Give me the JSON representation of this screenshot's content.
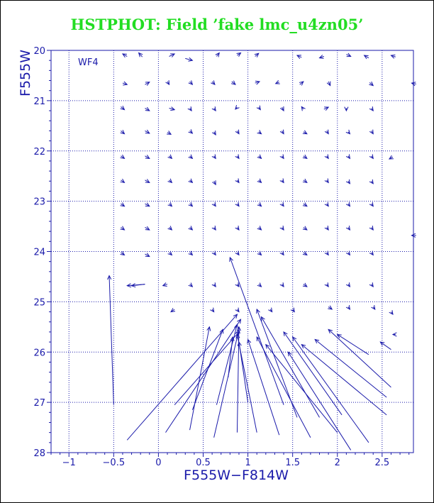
{
  "chart_data": {
    "type": "scatter",
    "title": "HSTPHOT: Field ’fake lmc_u4zn05’",
    "xlabel": "F555W−F814W",
    "ylabel": "F555W",
    "panel_label": "WF4",
    "xlim": [
      -1.2,
      2.85
    ],
    "ylim": [
      28,
      20
    ],
    "x_ticks": [
      -1,
      -0.5,
      0,
      0.5,
      1,
      1.5,
      2,
      2.5
    ],
    "x_tick_labels": [
      "−1",
      "−0.5",
      "0",
      "0.5",
      "1",
      "1.5",
      "2",
      "2.5"
    ],
    "y_ticks": [
      20,
      21,
      22,
      23,
      24,
      25,
      26,
      27,
      28
    ],
    "y_tick_labels": [
      "20",
      "21",
      "22",
      "23",
      "24",
      "25",
      "26",
      "27",
      "28"
    ],
    "grid": true,
    "grid_style": "dotted",
    "colors": {
      "title": "#22dd22",
      "axes": "#1a1aaa",
      "grid": "#1a1aaa",
      "vectors": "#1a1aaa"
    },
    "description_of_series": "Each vector runs from an input (color, magnitude) to the recovered (color, magnitude).",
    "vectors": [
      {
        "x0": -0.35,
        "y0": 20.12,
        "x1": -0.4,
        "y1": 20.07
      },
      {
        "x0": -0.18,
        "y0": 20.13,
        "x1": -0.22,
        "y1": 20.05
      },
      {
        "x0": 0.12,
        "y0": 20.12,
        "x1": 0.18,
        "y1": 20.07
      },
      {
        "x0": 0.3,
        "y0": 20.16,
        "x1": 0.38,
        "y1": 20.2
      },
      {
        "x0": 0.65,
        "y0": 20.12,
        "x1": 0.68,
        "y1": 20.05
      },
      {
        "x0": 0.88,
        "y0": 20.1,
        "x1": 0.92,
        "y1": 20.05
      },
      {
        "x0": 1.08,
        "y0": 20.12,
        "x1": 1.12,
        "y1": 20.06
      },
      {
        "x0": 1.6,
        "y0": 20.14,
        "x1": 1.55,
        "y1": 20.1
      },
      {
        "x0": 1.85,
        "y0": 20.12,
        "x1": 1.8,
        "y1": 20.15
      },
      {
        "x0": 2.1,
        "y0": 20.08,
        "x1": 2.15,
        "y1": 20.12
      },
      {
        "x0": 2.35,
        "y0": 20.15,
        "x1": 2.3,
        "y1": 20.1
      },
      {
        "x0": 2.65,
        "y0": 20.13,
        "x1": 2.6,
        "y1": 20.1
      },
      {
        "x0": -0.4,
        "y0": 20.65,
        "x1": -0.35,
        "y1": 20.68
      },
      {
        "x0": -0.15,
        "y0": 20.68,
        "x1": -0.1,
        "y1": 20.63
      },
      {
        "x0": 0.1,
        "y0": 20.62,
        "x1": 0.12,
        "y1": 20.68
      },
      {
        "x0": 0.35,
        "y0": 20.62,
        "x1": 0.38,
        "y1": 20.68
      },
      {
        "x0": 0.6,
        "y0": 20.62,
        "x1": 0.63,
        "y1": 20.68
      },
      {
        "x0": 0.82,
        "y0": 20.62,
        "x1": 0.86,
        "y1": 20.68
      },
      {
        "x0": 1.08,
        "y0": 20.65,
        "x1": 1.13,
        "y1": 20.62
      },
      {
        "x0": 1.35,
        "y0": 20.63,
        "x1": 1.31,
        "y1": 20.66
      },
      {
        "x0": 1.58,
        "y0": 20.68,
        "x1": 1.62,
        "y1": 20.62
      },
      {
        "x0": 1.9,
        "y0": 20.62,
        "x1": 1.92,
        "y1": 20.7
      },
      {
        "x0": 2.36,
        "y0": 20.64,
        "x1": 2.4,
        "y1": 20.7
      },
      {
        "x0": 2.88,
        "y0": 20.67,
        "x1": 2.83,
        "y1": 20.65
      },
      {
        "x0": -0.42,
        "y0": 21.12,
        "x1": -0.38,
        "y1": 21.18
      },
      {
        "x0": -0.15,
        "y0": 21.15,
        "x1": -0.1,
        "y1": 21.2
      },
      {
        "x0": 0.12,
        "y0": 21.15,
        "x1": 0.18,
        "y1": 21.18
      },
      {
        "x0": 0.35,
        "y0": 21.15,
        "x1": 0.37,
        "y1": 21.2
      },
      {
        "x0": 0.62,
        "y0": 21.15,
        "x1": 0.64,
        "y1": 21.2
      },
      {
        "x0": 0.88,
        "y0": 21.13,
        "x1": 0.86,
        "y1": 21.17
      },
      {
        "x0": 1.12,
        "y0": 21.13,
        "x1": 1.14,
        "y1": 21.18
      },
      {
        "x0": 1.38,
        "y0": 21.13,
        "x1": 1.4,
        "y1": 21.2
      },
      {
        "x0": 1.62,
        "y0": 21.17,
        "x1": 1.6,
        "y1": 21.12
      },
      {
        "x0": 1.85,
        "y0": 21.17,
        "x1": 1.9,
        "y1": 21.13
      },
      {
        "x0": 2.1,
        "y0": 21.15,
        "x1": 2.1,
        "y1": 21.2
      },
      {
        "x0": 2.38,
        "y0": 21.15,
        "x1": 2.4,
        "y1": 21.2
      },
      {
        "x0": -0.42,
        "y0": 21.6,
        "x1": -0.38,
        "y1": 21.66
      },
      {
        "x0": -0.15,
        "y0": 21.6,
        "x1": -0.1,
        "y1": 21.65
      },
      {
        "x0": 0.1,
        "y0": 21.63,
        "x1": 0.14,
        "y1": 21.67
      },
      {
        "x0": 0.35,
        "y0": 21.6,
        "x1": 0.38,
        "y1": 21.65
      },
      {
        "x0": 0.62,
        "y0": 21.62,
        "x1": 0.64,
        "y1": 21.68
      },
      {
        "x0": 0.88,
        "y0": 21.6,
        "x1": 0.9,
        "y1": 21.66
      },
      {
        "x0": 1.12,
        "y0": 21.62,
        "x1": 1.15,
        "y1": 21.66
      },
      {
        "x0": 1.38,
        "y0": 21.6,
        "x1": 1.4,
        "y1": 21.66
      },
      {
        "x0": 1.62,
        "y0": 21.62,
        "x1": 1.66,
        "y1": 21.66
      },
      {
        "x0": 1.88,
        "y0": 21.6,
        "x1": 1.9,
        "y1": 21.66
      },
      {
        "x0": 2.12,
        "y0": 21.62,
        "x1": 2.14,
        "y1": 21.66
      },
      {
        "x0": 2.38,
        "y0": 21.6,
        "x1": 2.4,
        "y1": 21.66
      },
      {
        "x0": -0.42,
        "y0": 22.1,
        "x1": -0.38,
        "y1": 22.15
      },
      {
        "x0": -0.15,
        "y0": 22.1,
        "x1": -0.1,
        "y1": 22.15
      },
      {
        "x0": 0.12,
        "y0": 22.1,
        "x1": 0.15,
        "y1": 22.15
      },
      {
        "x0": 0.35,
        "y0": 22.1,
        "x1": 0.38,
        "y1": 22.15
      },
      {
        "x0": 0.62,
        "y0": 22.1,
        "x1": 0.64,
        "y1": 22.15
      },
      {
        "x0": 0.88,
        "y0": 22.1,
        "x1": 0.9,
        "y1": 22.15
      },
      {
        "x0": 1.12,
        "y0": 22.1,
        "x1": 1.15,
        "y1": 22.15
      },
      {
        "x0": 1.38,
        "y0": 22.1,
        "x1": 1.4,
        "y1": 22.15
      },
      {
        "x0": 1.62,
        "y0": 22.1,
        "x1": 1.66,
        "y1": 22.15
      },
      {
        "x0": 1.88,
        "y0": 22.1,
        "x1": 1.9,
        "y1": 22.15
      },
      {
        "x0": 2.12,
        "y0": 22.1,
        "x1": 2.14,
        "y1": 22.15
      },
      {
        "x0": 2.38,
        "y0": 22.1,
        "x1": 2.4,
        "y1": 22.15
      },
      {
        "x0": 2.62,
        "y0": 22.12,
        "x1": 2.58,
        "y1": 22.16
      },
      {
        "x0": -0.42,
        "y0": 22.58,
        "x1": -0.38,
        "y1": 22.63
      },
      {
        "x0": -0.15,
        "y0": 22.58,
        "x1": -0.1,
        "y1": 22.63
      },
      {
        "x0": 0.12,
        "y0": 22.58,
        "x1": 0.15,
        "y1": 22.63
      },
      {
        "x0": 0.35,
        "y0": 22.58,
        "x1": 0.38,
        "y1": 22.63
      },
      {
        "x0": 0.62,
        "y0": 22.6,
        "x1": 0.64,
        "y1": 22.67
      },
      {
        "x0": 0.88,
        "y0": 22.58,
        "x1": 0.9,
        "y1": 22.63
      },
      {
        "x0": 1.12,
        "y0": 22.58,
        "x1": 1.15,
        "y1": 22.63
      },
      {
        "x0": 1.38,
        "y0": 22.58,
        "x1": 1.4,
        "y1": 22.63
      },
      {
        "x0": 1.62,
        "y0": 22.58,
        "x1": 1.66,
        "y1": 22.63
      },
      {
        "x0": 1.88,
        "y0": 22.58,
        "x1": 1.9,
        "y1": 22.63
      },
      {
        "x0": 2.12,
        "y0": 22.6,
        "x1": 2.14,
        "y1": 22.65
      },
      {
        "x0": 2.38,
        "y0": 22.6,
        "x1": 2.4,
        "y1": 22.65
      },
      {
        "x0": -0.42,
        "y0": 23.05,
        "x1": -0.38,
        "y1": 23.1
      },
      {
        "x0": -0.15,
        "y0": 23.05,
        "x1": -0.1,
        "y1": 23.1
      },
      {
        "x0": 0.12,
        "y0": 23.05,
        "x1": 0.15,
        "y1": 23.1
      },
      {
        "x0": 0.35,
        "y0": 23.05,
        "x1": 0.38,
        "y1": 23.1
      },
      {
        "x0": 0.62,
        "y0": 23.05,
        "x1": 0.64,
        "y1": 23.1
      },
      {
        "x0": 0.88,
        "y0": 23.05,
        "x1": 0.9,
        "y1": 23.1
      },
      {
        "x0": 1.12,
        "y0": 23.05,
        "x1": 1.15,
        "y1": 23.1
      },
      {
        "x0": 1.38,
        "y0": 23.05,
        "x1": 1.4,
        "y1": 23.1
      },
      {
        "x0": 1.62,
        "y0": 23.05,
        "x1": 1.66,
        "y1": 23.1
      },
      {
        "x0": 1.88,
        "y0": 23.05,
        "x1": 1.9,
        "y1": 23.1
      },
      {
        "x0": 2.12,
        "y0": 23.05,
        "x1": 2.14,
        "y1": 23.1
      },
      {
        "x0": 2.38,
        "y0": 23.05,
        "x1": 2.4,
        "y1": 23.1
      },
      {
        "x0": -0.42,
        "y0": 23.52,
        "x1": -0.38,
        "y1": 23.57
      },
      {
        "x0": -0.15,
        "y0": 23.52,
        "x1": -0.1,
        "y1": 23.57
      },
      {
        "x0": 0.12,
        "y0": 23.52,
        "x1": 0.15,
        "y1": 23.57
      },
      {
        "x0": 0.35,
        "y0": 23.52,
        "x1": 0.38,
        "y1": 23.57
      },
      {
        "x0": 0.62,
        "y0": 23.52,
        "x1": 0.64,
        "y1": 23.57
      },
      {
        "x0": 0.88,
        "y0": 23.52,
        "x1": 0.9,
        "y1": 23.57
      },
      {
        "x0": 1.12,
        "y0": 23.52,
        "x1": 1.15,
        "y1": 23.57
      },
      {
        "x0": 1.38,
        "y0": 23.52,
        "x1": 1.4,
        "y1": 23.57
      },
      {
        "x0": 1.62,
        "y0": 23.52,
        "x1": 1.66,
        "y1": 23.57
      },
      {
        "x0": 1.88,
        "y0": 23.52,
        "x1": 1.9,
        "y1": 23.57
      },
      {
        "x0": 2.12,
        "y0": 23.52,
        "x1": 2.14,
        "y1": 23.57
      },
      {
        "x0": 2.38,
        "y0": 23.52,
        "x1": 2.4,
        "y1": 23.57
      },
      {
        "x0": 2.88,
        "y0": 23.68,
        "x1": 2.83,
        "y1": 23.68
      },
      {
        "x0": -0.42,
        "y0": 24.02,
        "x1": -0.38,
        "y1": 24.07
      },
      {
        "x0": -0.15,
        "y0": 24.05,
        "x1": -0.1,
        "y1": 24.1
      },
      {
        "x0": 0.12,
        "y0": 24.02,
        "x1": 0.15,
        "y1": 24.07
      },
      {
        "x0": 0.35,
        "y0": 24.02,
        "x1": 0.38,
        "y1": 24.07
      },
      {
        "x0": 0.62,
        "y0": 24.02,
        "x1": 0.64,
        "y1": 24.07
      },
      {
        "x0": 0.88,
        "y0": 24.02,
        "x1": 0.9,
        "y1": 24.07
      },
      {
        "x0": 1.12,
        "y0": 24.02,
        "x1": 1.15,
        "y1": 24.07
      },
      {
        "x0": 1.38,
        "y0": 24.02,
        "x1": 1.4,
        "y1": 24.07
      },
      {
        "x0": 1.62,
        "y0": 24.02,
        "x1": 1.66,
        "y1": 24.07
      },
      {
        "x0": 1.88,
        "y0": 24.02,
        "x1": 1.9,
        "y1": 24.07
      },
      {
        "x0": 2.12,
        "y0": 24.02,
        "x1": 2.14,
        "y1": 24.07
      },
      {
        "x0": 2.38,
        "y0": 24.02,
        "x1": 2.4,
        "y1": 24.07
      },
      {
        "x0": -0.15,
        "y0": 24.65,
        "x1": -0.3,
        "y1": 24.68
      },
      {
        "x0": 0.1,
        "y0": 24.65,
        "x1": 0.05,
        "y1": 24.68
      },
      {
        "x0": 0.35,
        "y0": 24.65,
        "x1": 0.38,
        "y1": 24.7
      },
      {
        "x0": 0.62,
        "y0": 24.65,
        "x1": 0.64,
        "y1": 24.7
      },
      {
        "x0": 0.88,
        "y0": 24.65,
        "x1": 0.9,
        "y1": 24.7
      },
      {
        "x0": 1.12,
        "y0": 24.65,
        "x1": 1.15,
        "y1": 24.7
      },
      {
        "x0": 1.38,
        "y0": 24.65,
        "x1": 1.4,
        "y1": 24.7
      },
      {
        "x0": 1.62,
        "y0": 24.65,
        "x1": 1.66,
        "y1": 24.7
      },
      {
        "x0": 1.88,
        "y0": 24.65,
        "x1": 1.9,
        "y1": 24.7
      },
      {
        "x0": 2.12,
        "y0": 24.65,
        "x1": 2.14,
        "y1": 24.7
      },
      {
        "x0": 2.38,
        "y0": 24.65,
        "x1": 2.4,
        "y1": 24.7
      },
      {
        "x0": 0.18,
        "y0": 25.15,
        "x1": 0.14,
        "y1": 25.2
      },
      {
        "x0": 0.6,
        "y0": 25.15,
        "x1": 0.62,
        "y1": 25.2
      },
      {
        "x0": 0.88,
        "y0": 25.15,
        "x1": 0.9,
        "y1": 25.2
      },
      {
        "x0": 1.25,
        "y0": 25.15,
        "x1": 1.27,
        "y1": 25.2
      },
      {
        "x0": 1.5,
        "y0": 25.15,
        "x1": 1.52,
        "y1": 25.2
      },
      {
        "x0": 1.9,
        "y0": 25.1,
        "x1": 1.94,
        "y1": 25.15
      },
      {
        "x0": 2.12,
        "y0": 25.1,
        "x1": 2.14,
        "y1": 25.15
      },
      {
        "x0": 2.4,
        "y0": 25.1,
        "x1": 2.42,
        "y1": 25.15
      },
      {
        "x0": 2.6,
        "y0": 25.2,
        "x1": 2.62,
        "y1": 25.25
      },
      {
        "x0": -0.5,
        "y0": 27.05,
        "x1": -0.55,
        "y1": 24.48
      },
      {
        "x0": -0.15,
        "y0": 24.65,
        "x1": -0.35,
        "y1": 24.68
      },
      {
        "x0": 1.4,
        "y0": 27.05,
        "x1": 0.8,
        "y1": 24.12
      },
      {
        "x0": -0.35,
        "y0": 27.75,
        "x1": 0.88,
        "y1": 25.25
      },
      {
        "x0": 0.08,
        "y0": 27.6,
        "x1": 0.92,
        "y1": 25.35
      },
      {
        "x0": 0.18,
        "y0": 27.05,
        "x1": 0.9,
        "y1": 25.6
      },
      {
        "x0": 0.35,
        "y0": 27.55,
        "x1": 0.57,
        "y1": 25.5
      },
      {
        "x0": 0.38,
        "y0": 27.15,
        "x1": 0.72,
        "y1": 25.55
      },
      {
        "x0": 0.62,
        "y0": 27.7,
        "x1": 0.9,
        "y1": 25.55
      },
      {
        "x0": 0.65,
        "y0": 27.05,
        "x1": 0.88,
        "y1": 25.45
      },
      {
        "x0": 0.88,
        "y0": 27.6,
        "x1": 0.9,
        "y1": 25.5
      },
      {
        "x0": 0.78,
        "y0": 26.5,
        "x1": 0.83,
        "y1": 25.7
      },
      {
        "x0": 1.1,
        "y0": 27.6,
        "x1": 0.88,
        "y1": 25.65
      },
      {
        "x0": 1.35,
        "y0": 27.65,
        "x1": 1.0,
        "y1": 25.75
      },
      {
        "x0": 1.0,
        "y0": 27.0,
        "x1": 0.9,
        "y1": 25.8
      },
      {
        "x0": 1.55,
        "y0": 27.3,
        "x1": 1.1,
        "y1": 25.15
      },
      {
        "x0": 1.8,
        "y0": 27.3,
        "x1": 1.15,
        "y1": 25.3
      },
      {
        "x0": 1.7,
        "y0": 27.7,
        "x1": 1.1,
        "y1": 25.7
      },
      {
        "x0": 2.0,
        "y0": 27.6,
        "x1": 1.2,
        "y1": 25.85
      },
      {
        "x0": 2.05,
        "y0": 27.25,
        "x1": 1.4,
        "y1": 25.6
      },
      {
        "x0": 2.35,
        "y0": 27.8,
        "x1": 1.5,
        "y1": 25.7
      },
      {
        "x0": 2.6,
        "y0": 26.7,
        "x1": 1.9,
        "y1": 25.55
      },
      {
        "x0": 2.55,
        "y0": 26.9,
        "x1": 1.75,
        "y1": 25.75
      },
      {
        "x0": 2.55,
        "y0": 27.25,
        "x1": 1.6,
        "y1": 25.85
      },
      {
        "x0": 2.35,
        "y0": 26.05,
        "x1": 2.0,
        "y1": 25.65
      },
      {
        "x0": 2.15,
        "y0": 27.95,
        "x1": 1.45,
        "y1": 26.0
      },
      {
        "x0": 2.6,
        "y0": 25.95,
        "x1": 2.48,
        "y1": 25.8
      },
      {
        "x0": 2.65,
        "y0": 25.65,
        "x1": 2.62,
        "y1": 25.65
      }
    ]
  }
}
